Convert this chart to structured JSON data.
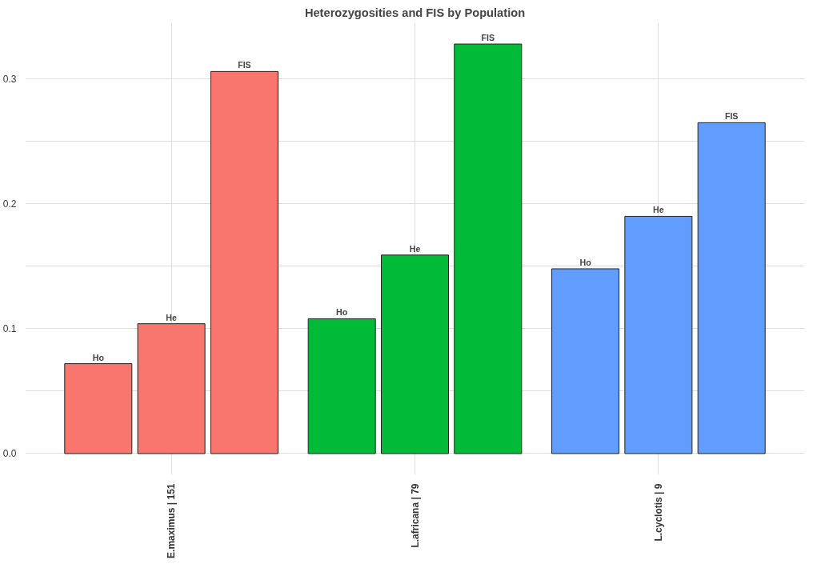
{
  "chart_data": {
    "type": "bar",
    "title": "Heterozygosities and FIS by Population",
    "categories": [
      "E.maximus | 151",
      "L.africana | 79",
      "L.cyclotis | 9"
    ],
    "series": [
      {
        "name": "Ho",
        "colors": [
          "#f8766d",
          "#00ba38",
          "#619cff"
        ],
        "values": [
          0.072,
          0.108,
          0.148
        ]
      },
      {
        "name": "He",
        "colors": [
          "#f8766d",
          "#00ba38",
          "#619cff"
        ],
        "values": [
          0.104,
          0.159,
          0.19
        ]
      },
      {
        "name": "FIS",
        "colors": [
          "#f8766d",
          "#00ba38",
          "#619cff"
        ],
        "values": [
          0.306,
          0.328,
          0.265
        ]
      }
    ],
    "ylim": [
      -0.017,
      0.345
    ],
    "yticks": [
      {
        "value": 0,
        "label": "0.0"
      },
      {
        "value": 0.05,
        "label": null
      },
      0.1,
      {
        "value": 0.15,
        "label": null
      },
      0.2,
      {
        "value": 0.25,
        "label": null
      },
      0.3
    ],
    "grid": true
  }
}
